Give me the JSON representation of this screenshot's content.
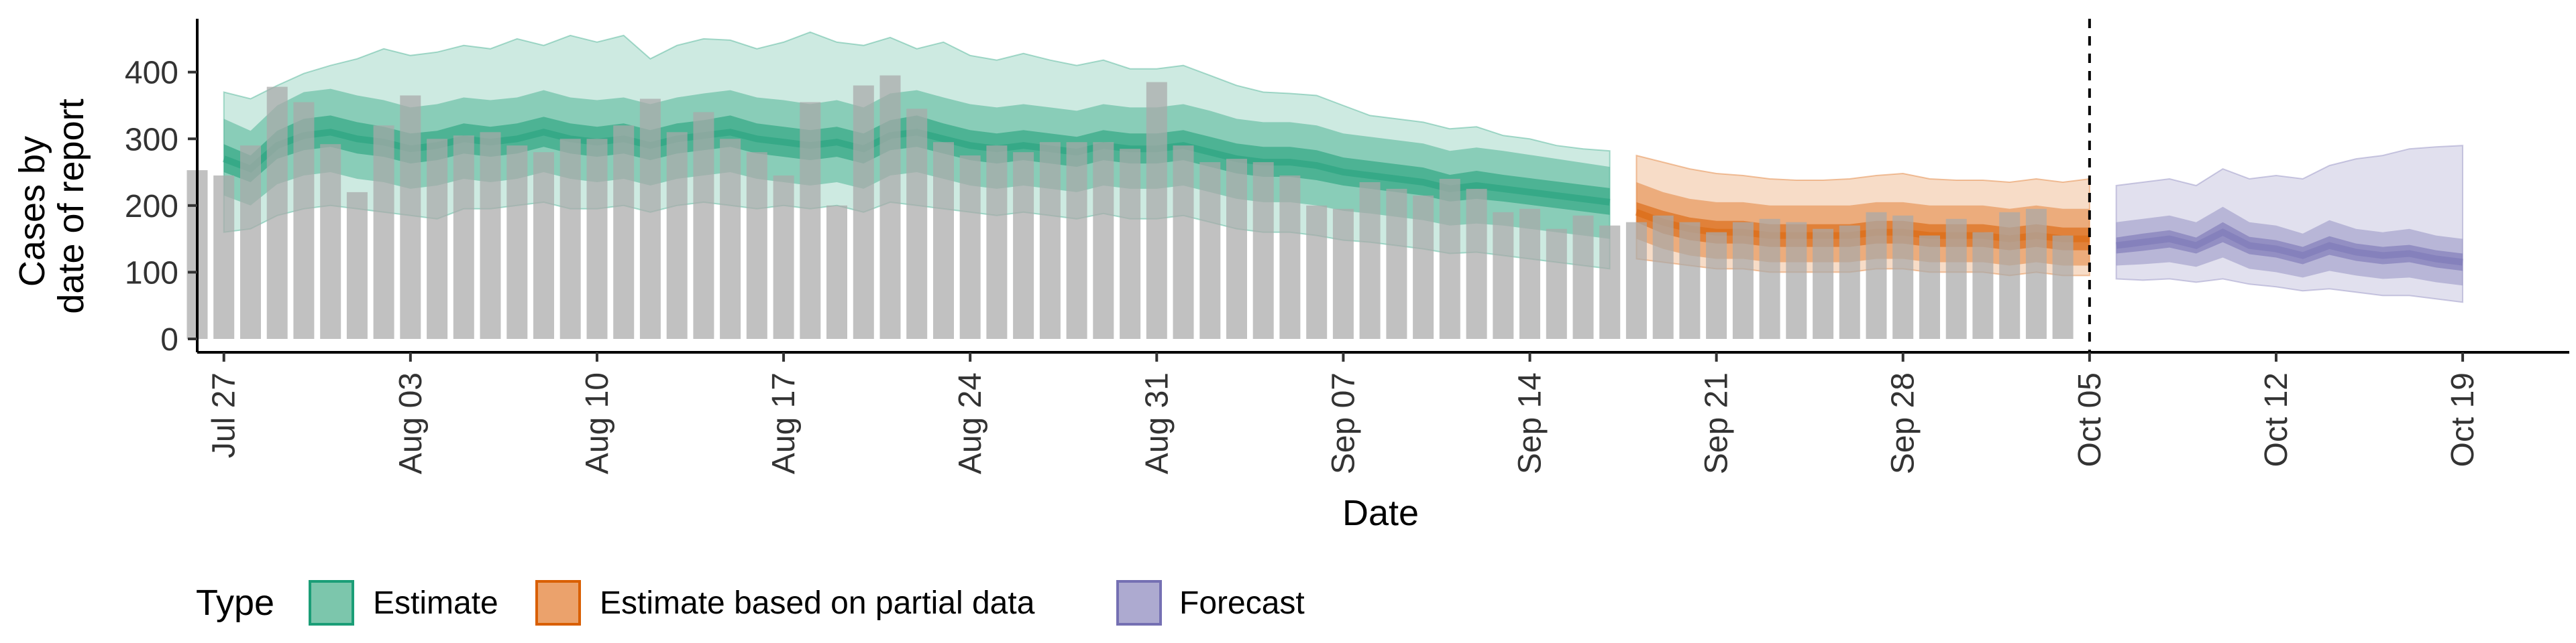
{
  "chart_data": {
    "type": "bar",
    "title": "",
    "xlabel": "Date",
    "ylabel": [
      "Cases by",
      "date of report"
    ],
    "ylim": [
      0,
      480
    ],
    "y_ticks": [
      0,
      100,
      200,
      300,
      400
    ],
    "x_ticks": [
      {
        "date": "2020-07-27",
        "label": "Jul 27"
      },
      {
        "date": "2020-08-03",
        "label": "Aug 03"
      },
      {
        "date": "2020-08-10",
        "label": "Aug 10"
      },
      {
        "date": "2020-08-17",
        "label": "Aug 17"
      },
      {
        "date": "2020-08-24",
        "label": "Aug 24"
      },
      {
        "date": "2020-08-31",
        "label": "Aug 31"
      },
      {
        "date": "2020-09-07",
        "label": "Sep 07"
      },
      {
        "date": "2020-09-14",
        "label": "Sep 14"
      },
      {
        "date": "2020-09-21",
        "label": "Sep 21"
      },
      {
        "date": "2020-09-28",
        "label": "Sep 28"
      },
      {
        "date": "2020-10-05",
        "label": "Oct 05"
      },
      {
        "date": "2020-10-12",
        "label": "Oct 12"
      },
      {
        "date": "2020-10-19",
        "label": "Oct 19"
      }
    ],
    "xlim": [
      "2020-07-26",
      "2020-10-23"
    ],
    "vline_date": "2020-10-05",
    "grid": false,
    "legend_position": "bottom-left",
    "legend": {
      "title": "Type",
      "items": [
        {
          "label": "Estimate",
          "fill": "#7cc6ac",
          "stroke": "#1b9e77"
        },
        {
          "label": "Estimate based on partial data",
          "fill": "#eba26c",
          "stroke": "#d95f02"
        },
        {
          "label": "Forecast",
          "fill": "#adaad0",
          "stroke": "#7570b3"
        }
      ]
    },
    "colors": {
      "bars": "#a9a9a9",
      "estimate": "#1b9e77",
      "partial": "#d95f02",
      "forecast": "#7570b3",
      "vline": "#000000",
      "axis": "#000000"
    },
    "reported_cases": {
      "start_date": "2020-07-26",
      "values": [
        253,
        245,
        290,
        378,
        355,
        292,
        220,
        320,
        365,
        300,
        305,
        310,
        290,
        280,
        300,
        300,
        320,
        360,
        310,
        340,
        300,
        280,
        245,
        355,
        200,
        380,
        395,
        345,
        295,
        275,
        290,
        280,
        295,
        295,
        295,
        285,
        385,
        290,
        265,
        270,
        265,
        245,
        200,
        195,
        235,
        225,
        215,
        240,
        225,
        190,
        195,
        165,
        185,
        170,
        175,
        185,
        175,
        160,
        175,
        180,
        175,
        165,
        170,
        190,
        185,
        155,
        180,
        160,
        190,
        195,
        155
      ]
    },
    "series": [
      {
        "name": "Estimate",
        "start_date": "2020-07-27",
        "median": [
          270,
          255,
          290,
          305,
          310,
          300,
          295,
          285,
          290,
          300,
          295,
          300,
          310,
          300,
          295,
          300,
          290,
          300,
          305,
          310,
          300,
          295,
          290,
          295,
          285,
          305,
          310,
          300,
          290,
          285,
          290,
          285,
          280,
          290,
          285,
          285,
          290,
          280,
          270,
          265,
          265,
          260,
          250,
          245,
          240,
          235,
          225,
          230,
          225,
          220,
          215,
          210,
          205
        ],
        "ci50": [
          [
            250,
            292
          ],
          [
            235,
            275
          ],
          [
            270,
            312
          ],
          [
            283,
            330
          ],
          [
            288,
            335
          ],
          [
            278,
            325
          ],
          [
            273,
            318
          ],
          [
            263,
            308
          ],
          [
            268,
            312
          ],
          [
            278,
            323
          ],
          [
            273,
            318
          ],
          [
            278,
            323
          ],
          [
            288,
            333
          ],
          [
            278,
            323
          ],
          [
            273,
            318
          ],
          [
            278,
            323
          ],
          [
            268,
            313
          ],
          [
            278,
            323
          ],
          [
            283,
            328
          ],
          [
            288,
            335
          ],
          [
            278,
            323
          ],
          [
            273,
            318
          ],
          [
            268,
            313
          ],
          [
            273,
            318
          ],
          [
            263,
            308
          ],
          [
            283,
            328
          ],
          [
            288,
            335
          ],
          [
            278,
            323
          ],
          [
            268,
            313
          ],
          [
            263,
            308
          ],
          [
            268,
            313
          ],
          [
            263,
            308
          ],
          [
            258,
            303
          ],
          [
            268,
            313
          ],
          [
            263,
            308
          ],
          [
            263,
            308
          ],
          [
            268,
            313
          ],
          [
            258,
            303
          ],
          [
            248,
            293
          ],
          [
            243,
            288
          ],
          [
            243,
            288
          ],
          [
            238,
            283
          ],
          [
            230,
            272
          ],
          [
            225,
            267
          ],
          [
            220,
            262
          ],
          [
            215,
            257
          ],
          [
            206,
            246
          ],
          [
            210,
            252
          ],
          [
            206,
            246
          ],
          [
            201,
            241
          ],
          [
            196,
            236
          ],
          [
            191,
            231
          ],
          [
            186,
            226
          ]
        ],
        "ci90": [
          [
            215,
            330
          ],
          [
            200,
            312
          ],
          [
            232,
            350
          ],
          [
            245,
            370
          ],
          [
            250,
            375
          ],
          [
            240,
            365
          ],
          [
            235,
            358
          ],
          [
            225,
            347
          ],
          [
            230,
            352
          ],
          [
            240,
            362
          ],
          [
            235,
            358
          ],
          [
            240,
            362
          ],
          [
            250,
            373
          ],
          [
            240,
            362
          ],
          [
            235,
            358
          ],
          [
            240,
            362
          ],
          [
            230,
            352
          ],
          [
            240,
            362
          ],
          [
            245,
            368
          ],
          [
            250,
            373
          ],
          [
            240,
            362
          ],
          [
            235,
            358
          ],
          [
            230,
            352
          ],
          [
            235,
            358
          ],
          [
            225,
            347
          ],
          [
            245,
            368
          ],
          [
            250,
            373
          ],
          [
            240,
            362
          ],
          [
            230,
            352
          ],
          [
            225,
            347
          ],
          [
            230,
            352
          ],
          [
            225,
            347
          ],
          [
            220,
            342
          ],
          [
            230,
            352
          ],
          [
            225,
            347
          ],
          [
            225,
            347
          ],
          [
            230,
            352
          ],
          [
            220,
            342
          ],
          [
            210,
            330
          ],
          [
            205,
            325
          ],
          [
            205,
            325
          ],
          [
            200,
            320
          ],
          [
            192,
            308
          ],
          [
            188,
            303
          ],
          [
            183,
            298
          ],
          [
            178,
            293
          ],
          [
            170,
            282
          ],
          [
            173,
            287
          ],
          [
            170,
            282
          ],
          [
            165,
            276
          ],
          [
            160,
            270
          ],
          [
            155,
            264
          ],
          [
            150,
            258
          ]
        ],
        "ci_outer": [
          [
            160,
            370
          ],
          [
            165,
            360
          ],
          [
            185,
            380
          ],
          [
            195,
            398
          ],
          [
            200,
            410
          ],
          [
            195,
            420
          ],
          [
            190,
            435
          ],
          [
            185,
            425
          ],
          [
            180,
            430
          ],
          [
            195,
            440
          ],
          [
            195,
            435
          ],
          [
            200,
            450
          ],
          [
            205,
            440
          ],
          [
            195,
            455
          ],
          [
            195,
            445
          ],
          [
            200,
            455
          ],
          [
            190,
            420
          ],
          [
            200,
            440
          ],
          [
            205,
            450
          ],
          [
            200,
            448
          ],
          [
            195,
            435
          ],
          [
            200,
            445
          ],
          [
            195,
            460
          ],
          [
            200,
            445
          ],
          [
            190,
            440
          ],
          [
            205,
            452
          ],
          [
            200,
            435
          ],
          [
            195,
            445
          ],
          [
            190,
            425
          ],
          [
            185,
            418
          ],
          [
            190,
            428
          ],
          [
            185,
            418
          ],
          [
            180,
            410
          ],
          [
            188,
            418
          ],
          [
            180,
            405
          ],
          [
            180,
            405
          ],
          [
            185,
            410
          ],
          [
            175,
            395
          ],
          [
            165,
            380
          ],
          [
            160,
            370
          ],
          [
            160,
            368
          ],
          [
            155,
            365
          ],
          [
            148,
            350
          ],
          [
            145,
            335
          ],
          [
            140,
            330
          ],
          [
            135,
            325
          ],
          [
            128,
            315
          ],
          [
            130,
            318
          ],
          [
            125,
            305
          ],
          [
            120,
            300
          ],
          [
            115,
            290
          ],
          [
            110,
            285
          ],
          [
            105,
            282
          ]
        ]
      },
      {
        "name": "Estimate based on partial data",
        "start_date": "2020-09-18",
        "median": [
          190,
          175,
          165,
          160,
          160,
          155,
          155,
          155,
          155,
          160,
          160,
          155,
          155,
          155,
          150,
          155,
          150,
          150
        ],
        "ci50": [
          [
            175,
            205
          ],
          [
            158,
            192
          ],
          [
            148,
            182
          ],
          [
            143,
            177
          ],
          [
            143,
            177
          ],
          [
            138,
            172
          ],
          [
            138,
            172
          ],
          [
            138,
            172
          ],
          [
            138,
            172
          ],
          [
            143,
            177
          ],
          [
            143,
            177
          ],
          [
            138,
            172
          ],
          [
            138,
            172
          ],
          [
            138,
            172
          ],
          [
            133,
            167
          ],
          [
            138,
            172
          ],
          [
            133,
            167
          ],
          [
            133,
            167
          ]
        ],
        "ci90": [
          [
            150,
            235
          ],
          [
            135,
            220
          ],
          [
            125,
            210
          ],
          [
            120,
            205
          ],
          [
            120,
            205
          ],
          [
            115,
            200
          ],
          [
            115,
            200
          ],
          [
            115,
            200
          ],
          [
            115,
            200
          ],
          [
            120,
            205
          ],
          [
            120,
            205
          ],
          [
            115,
            200
          ],
          [
            115,
            200
          ],
          [
            115,
            200
          ],
          [
            110,
            195
          ],
          [
            115,
            200
          ],
          [
            110,
            195
          ],
          [
            110,
            195
          ]
        ],
        "ci_outer": [
          [
            120,
            275
          ],
          [
            115,
            265
          ],
          [
            110,
            255
          ],
          [
            105,
            248
          ],
          [
            105,
            245
          ],
          [
            100,
            240
          ],
          [
            100,
            238
          ],
          [
            100,
            238
          ],
          [
            100,
            240
          ],
          [
            105,
            245
          ],
          [
            105,
            248
          ],
          [
            100,
            240
          ],
          [
            100,
            238
          ],
          [
            100,
            238
          ],
          [
            95,
            235
          ],
          [
            100,
            240
          ],
          [
            95,
            235
          ],
          [
            95,
            240
          ]
        ]
      },
      {
        "name": "Forecast",
        "start_date": "2020-10-06",
        "median": [
          140,
          145,
          150,
          140,
          160,
          140,
          135,
          125,
          140,
          130,
          125,
          128,
          120,
          115
        ],
        "ci50": [
          [
            128,
            152
          ],
          [
            132,
            158
          ],
          [
            137,
            163
          ],
          [
            128,
            152
          ],
          [
            145,
            175
          ],
          [
            127,
            153
          ],
          [
            122,
            148
          ],
          [
            112,
            138
          ],
          [
            126,
            154
          ],
          [
            117,
            143
          ],
          [
            112,
            138
          ],
          [
            115,
            141
          ],
          [
            107,
            133
          ],
          [
            102,
            128
          ]
        ],
        "ci90": [
          [
            110,
            175
          ],
          [
            112,
            180
          ],
          [
            115,
            185
          ],
          [
            108,
            175
          ],
          [
            122,
            198
          ],
          [
            105,
            175
          ],
          [
            100,
            170
          ],
          [
            92,
            158
          ],
          [
            102,
            178
          ],
          [
            95,
            165
          ],
          [
            90,
            160
          ],
          [
            92,
            165
          ],
          [
            85,
            155
          ],
          [
            80,
            150
          ]
        ],
        "ci_outer": [
          [
            90,
            230
          ],
          [
            88,
            235
          ],
          [
            90,
            240
          ],
          [
            85,
            230
          ],
          [
            90,
            255
          ],
          [
            82,
            240
          ],
          [
            78,
            245
          ],
          [
            72,
            240
          ],
          [
            75,
            260
          ],
          [
            70,
            270
          ],
          [
            65,
            275
          ],
          [
            65,
            285
          ],
          [
            60,
            288
          ],
          [
            55,
            290
          ]
        ]
      }
    ]
  }
}
